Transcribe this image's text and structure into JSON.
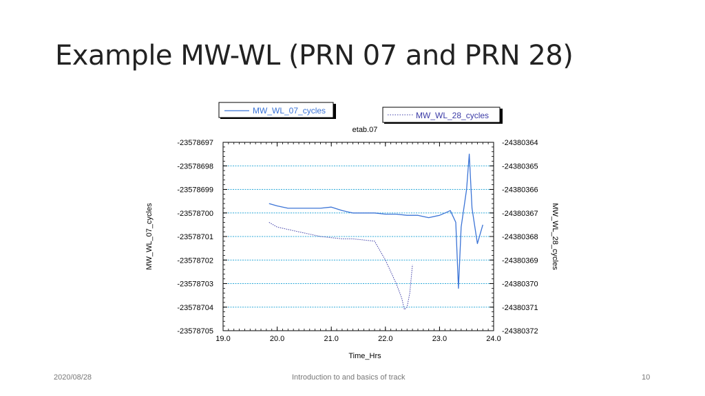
{
  "slide": {
    "title": "Example MW-WL (PRN 07 and PRN 28)",
    "footer_date": "2020/08/28",
    "footer_center": "Introduction to and basics of track",
    "page_number": "10"
  },
  "colors": {
    "series1": "#3a73d6",
    "series2": "#3b3ba6",
    "grid": "#2ba8d8"
  },
  "chart_data": {
    "type": "line",
    "title": "etab.07",
    "xlabel": "Time_Hrs",
    "ylabel": "MW_WL_07_cycles",
    "y2label": "MW_WL_28_cycles",
    "xlim": [
      19.0,
      24.0
    ],
    "ylim": [
      -23578705,
      -23578697
    ],
    "y2lim": [
      -24380372,
      -24380364
    ],
    "x_ticks": [
      "19.0",
      "20.0",
      "21.0",
      "22.0",
      "23.0",
      "24.0"
    ],
    "y_ticks": [
      "-23578697",
      "-23578698",
      "-23578699",
      "-23578700",
      "-23578701",
      "-23578702",
      "-23578703",
      "-23578704",
      "-23578705"
    ],
    "y2_ticks": [
      "-24380364",
      "-24380365",
      "-24380366",
      "-24380367",
      "-24380368",
      "-24380369",
      "-24380370",
      "-24380371",
      "-24380372"
    ],
    "grid": true,
    "legend": [
      "MW_WL_07_cycles",
      "MW_WL_28_cycles"
    ],
    "series": [
      {
        "name": "MW_WL_07_cycles",
        "axis": "left",
        "style": "solid",
        "x": [
          19.85,
          20.0,
          20.2,
          20.4,
          20.6,
          20.8,
          21.0,
          21.2,
          21.4,
          21.6,
          21.8,
          22.0,
          22.2,
          22.4,
          22.6,
          22.8,
          23.0,
          23.1,
          23.2,
          23.3,
          23.35,
          23.4,
          23.5,
          23.55,
          23.6,
          23.7,
          23.8
        ],
        "y": [
          -23578699.6,
          -23578699.7,
          -23578699.8,
          -23578699.8,
          -23578699.8,
          -23578699.8,
          -23578699.75,
          -23578699.9,
          -23578700.0,
          -23578700.0,
          -23578700.0,
          -23578700.05,
          -23578700.05,
          -23578700.1,
          -23578700.1,
          -23578700.2,
          -23578700.1,
          -23578700.0,
          -23578699.9,
          -23578700.4,
          -23578703.2,
          -23578700.6,
          -23578699.0,
          -23578697.5,
          -23578699.8,
          -23578701.3,
          -23578700.5
        ]
      },
      {
        "name": "MW_WL_28_cycles",
        "axis": "right",
        "style": "dotted",
        "x": [
          19.85,
          20.0,
          20.2,
          20.4,
          20.6,
          20.8,
          21.0,
          21.2,
          21.4,
          21.6,
          21.8,
          21.9,
          22.0,
          22.1,
          22.2,
          22.3,
          22.35,
          22.4,
          22.45,
          22.5
        ],
        "y": [
          -24380367.4,
          -24380367.6,
          -24380367.7,
          -24380367.8,
          -24380367.9,
          -24380368.0,
          -24380368.05,
          -24380368.1,
          -24380368.1,
          -24380368.15,
          -24380368.2,
          -24380368.6,
          -24380369.0,
          -24380369.5,
          -24380370.0,
          -24380370.6,
          -24380371.1,
          -24380371.0,
          -24380370.4,
          -24380369.2
        ]
      }
    ]
  }
}
